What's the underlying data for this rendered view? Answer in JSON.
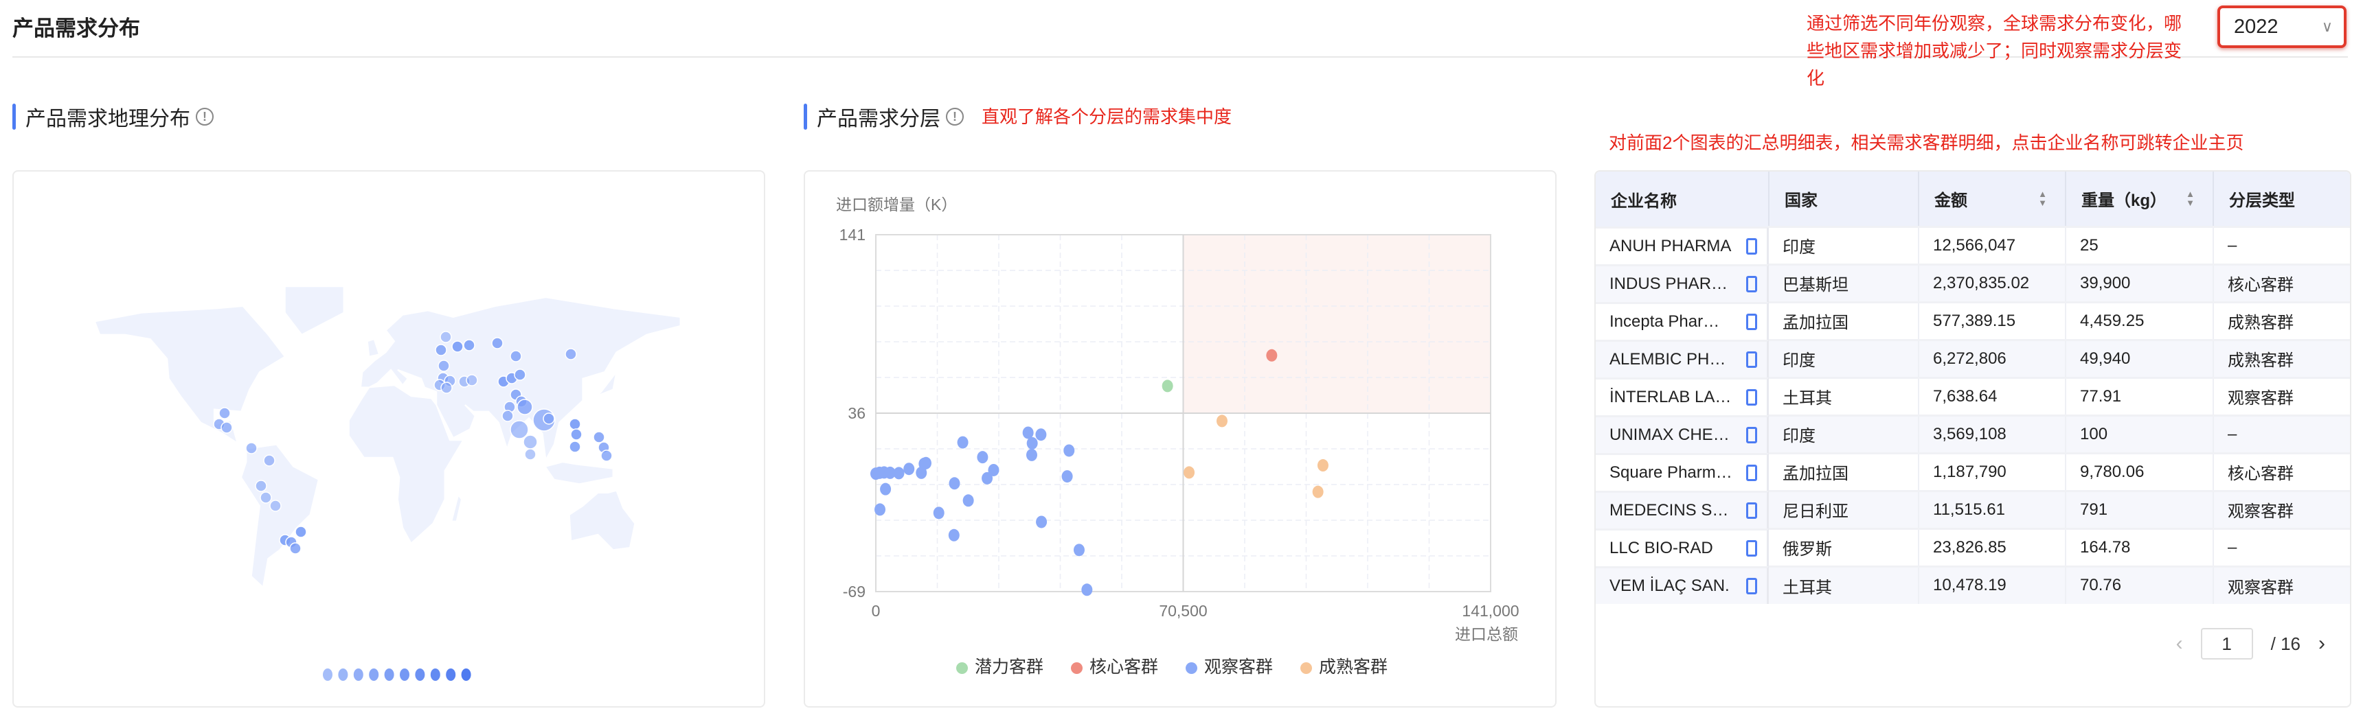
{
  "header": {
    "title": "产品需求分布",
    "year_select": "2022"
  },
  "annotations": {
    "top": "通过筛选不同年份观察，全球需求分布变化，哪些地区需求增加或减少了；同时观察需求分层变化",
    "scatter": "直观了解各个分层的需求集中度",
    "table": "对前面2个图表的汇总明细表，相关需求客群明细，点击企业名称可跳转企业主页"
  },
  "map_section": {
    "title": "产品需求地理分布",
    "info_icon": "info-circle-icon",
    "land_color": "#eef2fd",
    "bubble_color": "#7b9ef7",
    "legend_levels": 10
  },
  "scatter_section": {
    "title": "产品需求分层"
  },
  "chart_data": {
    "type": "scatter",
    "ylabel": "进口额增量（K）",
    "xlabel": "进口总额",
    "xlim": [
      0,
      141000
    ],
    "ylim": [
      -69,
      141
    ],
    "x_ticks": [
      "0",
      "70,500",
      "141,000"
    ],
    "y_ticks": [
      "141",
      "36",
      "-69"
    ],
    "grid": true,
    "legend": "bottom",
    "highlight_quadrant": "top-right",
    "series": [
      {
        "name": "潜力客群",
        "color": "#a8dcae",
        "points": [
          [
            66900,
            52
          ]
        ]
      },
      {
        "name": "核心客群",
        "color": "#ef8c80",
        "points": [
          [
            90800,
            70
          ]
        ]
      },
      {
        "name": "观察客群",
        "color": "#8aa9f7",
        "points": [
          [
            0,
            0.4
          ],
          [
            840,
            0.9
          ],
          [
            1900,
            1.1
          ],
          [
            3270,
            0.9
          ],
          [
            5280,
            0.7
          ],
          [
            7600,
            3.2
          ],
          [
            10440,
            0.9
          ],
          [
            11080,
            6.2
          ],
          [
            11500,
            6.6
          ],
          [
            2220,
            -8.7
          ],
          [
            950,
            -20.7
          ],
          [
            14450,
            -22.7
          ],
          [
            17930,
            -35.8
          ],
          [
            18040,
            -5.3
          ],
          [
            19940,
            18.8
          ],
          [
            21210,
            -15.4
          ],
          [
            24480,
            10.1
          ],
          [
            25530,
            -2.3
          ],
          [
            27010,
            2.5
          ],
          [
            34920,
            24.5
          ],
          [
            35870,
            18.3
          ],
          [
            35760,
            11.4
          ],
          [
            37870,
            23.4
          ],
          [
            37980,
            -28
          ],
          [
            43890,
            -1.2
          ],
          [
            44310,
            14
          ],
          [
            46630,
            -44.5
          ],
          [
            48420,
            -67.9
          ]
        ]
      },
      {
        "name": "成熟客群",
        "color": "#f7c597",
        "points": [
          [
            79400,
            31.4
          ],
          [
            71850,
            1.1
          ],
          [
            102550,
            5.3
          ],
          [
            101400,
            -10.3
          ]
        ]
      }
    ]
  },
  "table": {
    "columns": [
      "企业名称",
      "国家",
      "金额",
      "重量（kg）",
      "分层类型"
    ],
    "rows": [
      [
        "ANUH PHARMA",
        "印度",
        "12,566,047",
        "25",
        "–"
      ],
      [
        "INDUS PHARMA",
        "巴基斯坦",
        "2,370,835.02",
        "39,900",
        "核心客群"
      ],
      [
        "Incepta Pharmaceuticals",
        "孟加拉国",
        "577,389.15",
        "4,459.25",
        "成熟客群"
      ],
      [
        "ALEMBIC PHARMACEUTICALS",
        "印度",
        "6,272,806",
        "49,940",
        "成熟客群"
      ],
      [
        "İNTERLAB LABORATUVAR",
        "土耳其",
        "7,638.64",
        "77.91",
        "观察客群"
      ],
      [
        "UNIMAX CHEMICALS",
        "印度",
        "3,569,108",
        "100",
        "–"
      ],
      [
        "Square Pharmaceuticals",
        "孟加拉国",
        "1,187,790",
        "9,780.06",
        "核心客群"
      ],
      [
        "MEDECINS SANS FRONTIERES",
        "尼日利亚",
        "11,515.61",
        "791",
        "观察客群"
      ],
      [
        "LLC BIO-RAD",
        "俄罗斯",
        "23,826.85",
        "164.78",
        "–"
      ],
      [
        "VEM İLAÇ SAN.",
        "土耳其",
        "10,478.19",
        "70.76",
        "观察客群"
      ]
    ],
    "pagination": {
      "current": "1",
      "total": "/ 16"
    }
  }
}
